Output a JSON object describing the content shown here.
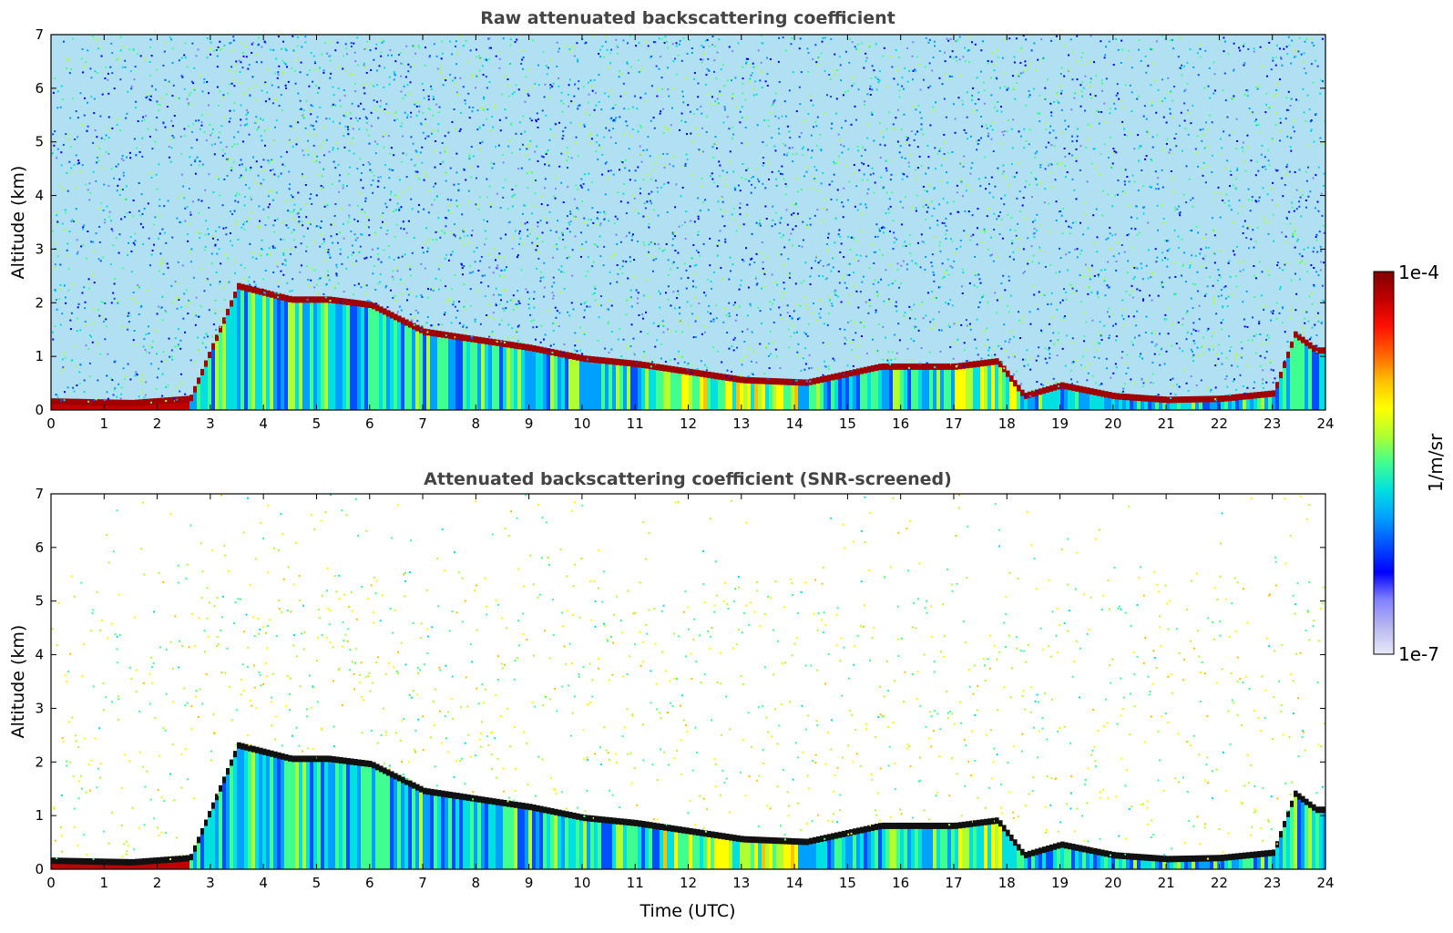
{
  "chart_data": [
    {
      "type": "heatmap",
      "title": "Raw attenuated backscattering coefficient",
      "xlabel": "",
      "ylabel": "Altitude (km)",
      "xlim": [
        0,
        24
      ],
      "ylim": [
        0,
        7
      ],
      "xticks": [
        "0",
        "1",
        "2",
        "3",
        "4",
        "5",
        "6",
        "7",
        "8",
        "9",
        "10",
        "11",
        "12",
        "13",
        "14",
        "15",
        "16",
        "17",
        "18",
        "19",
        "20",
        "21",
        "22",
        "23",
        "24"
      ],
      "yticks": [
        "0",
        "1",
        "2",
        "3",
        "4",
        "5",
        "6",
        "7"
      ],
      "layer_top_km": {
        "x": [
          0,
          1.5,
          2.6,
          3.5,
          4.5,
          5.2,
          6,
          7,
          8,
          9,
          10,
          11,
          12,
          13,
          14.2,
          15.6,
          17,
          17.8,
          18.3,
          19,
          20,
          21,
          22,
          23,
          23.4,
          23.8
        ],
        "y": [
          0.15,
          0.12,
          0.2,
          2.3,
          2.05,
          2.05,
          1.95,
          1.45,
          1.3,
          1.15,
          0.95,
          0.85,
          0.7,
          0.55,
          0.5,
          0.8,
          0.8,
          0.9,
          0.25,
          0.45,
          0.25,
          0.18,
          0.2,
          0.3,
          1.4,
          1.1
        ]
      },
      "noise_floor": "high"
    },
    {
      "type": "heatmap",
      "title": "Attenuated backscattering coefficient (SNR-screened)",
      "xlabel": "Time (UTC)",
      "ylabel": "Altitude (km)",
      "xlim": [
        0,
        24
      ],
      "ylim": [
        0,
        7
      ],
      "xticks": [
        "0",
        "1",
        "2",
        "3",
        "4",
        "5",
        "6",
        "7",
        "8",
        "9",
        "10",
        "11",
        "12",
        "13",
        "14",
        "15",
        "16",
        "17",
        "18",
        "19",
        "20",
        "21",
        "22",
        "23",
        "24"
      ],
      "yticks": [
        "0",
        "1",
        "2",
        "3",
        "4",
        "5",
        "6",
        "7"
      ],
      "layer_top_km": {
        "x": [
          0,
          1.5,
          2.6,
          3.5,
          4.5,
          5.2,
          6,
          7,
          8,
          9,
          10,
          11,
          12,
          13,
          14.2,
          15.6,
          17,
          17.8,
          18.3,
          19,
          20,
          21,
          22,
          23,
          23.4,
          23.8
        ],
        "y": [
          0.15,
          0.12,
          0.2,
          2.3,
          2.05,
          2.05,
          1.95,
          1.45,
          1.3,
          1.15,
          0.95,
          0.85,
          0.7,
          0.55,
          0.5,
          0.8,
          0.8,
          0.9,
          0.25,
          0.45,
          0.25,
          0.18,
          0.2,
          0.3,
          1.4,
          1.1
        ]
      },
      "noise_floor": "screened"
    }
  ],
  "colorbar": {
    "label": "1/m/sr",
    "max_label": "1e-4",
    "min_label": "1e-7",
    "scale": "log",
    "colors": [
      "#e8e8f8",
      "#b8b8f0",
      "#8080ff",
      "#0000ff",
      "#0050ff",
      "#00a0ff",
      "#00e0e0",
      "#40ff90",
      "#b0ff30",
      "#ffff00",
      "#ffc000",
      "#ff6000",
      "#ff1000",
      "#c00000",
      "#800000"
    ]
  }
}
